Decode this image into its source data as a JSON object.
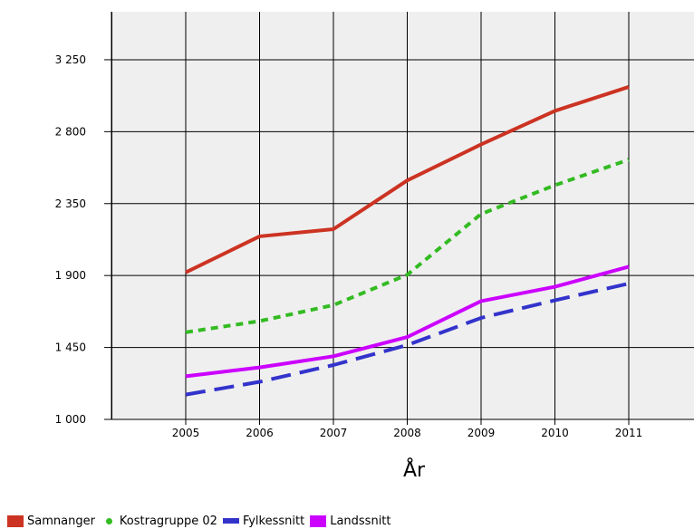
{
  "chart_data": {
    "type": "line",
    "title": "",
    "xlabel": "År",
    "ylabel": "",
    "categories": [
      "2005",
      "2006",
      "2007",
      "2008",
      "2009",
      "2010",
      "2011"
    ],
    "y_tick_labels": [
      "1 000",
      "1 450",
      "1 900",
      "2 350",
      "2 800",
      "3 250"
    ],
    "y_ticks": [
      1000,
      1450,
      1900,
      2350,
      2800,
      3250
    ],
    "ylim": [
      1000,
      3550
    ],
    "grid": true,
    "legend_position": "bottom-left",
    "plot_background": "#efefef",
    "series": [
      {
        "name": "Samnanger",
        "color": "#cc3322",
        "style": "solid",
        "values": [
          1920,
          2145,
          2190,
          2495,
          2720,
          2930,
          3080
        ]
      },
      {
        "name": "Kostragruppe 02",
        "color": "#33bb22",
        "style": "dotted",
        "values": [
          1545,
          1615,
          1715,
          1905,
          2285,
          2465,
          2625
        ]
      },
      {
        "name": "Fylkessnitt",
        "color": "#3333cc",
        "style": "dashed",
        "values": [
          1155,
          1235,
          1340,
          1465,
          1635,
          1745,
          1850
        ]
      },
      {
        "name": "Landssnitt",
        "color": "#cc00ff",
        "style": "solid",
        "values": [
          1270,
          1325,
          1395,
          1515,
          1740,
          1830,
          1955
        ]
      }
    ]
  },
  "legend": {
    "items": [
      {
        "label": "Samnanger",
        "color": "#cc3322",
        "marker": "square"
      },
      {
        "label": "Kostragruppe 02",
        "color": "#33bb22",
        "marker": "dot"
      },
      {
        "label": "Fylkessnitt",
        "color": "#3333cc",
        "marker": "bar"
      },
      {
        "label": "Landssnitt",
        "color": "#cc00ff",
        "marker": "square"
      }
    ]
  }
}
